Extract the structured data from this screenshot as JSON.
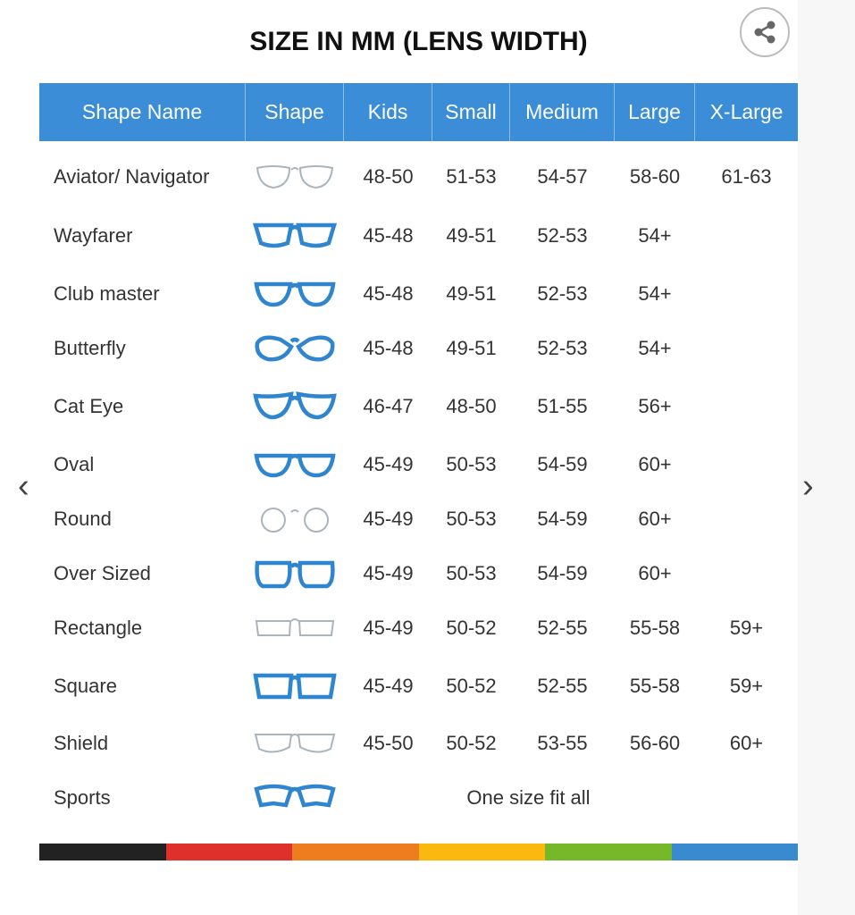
{
  "title": "SIZE IN MM (LENS WIDTH)",
  "share_icon": "share-icon",
  "columns": [
    "Shape Name",
    "Shape",
    "Kids",
    "Small",
    "Medium",
    "Large",
    "X-Large"
  ],
  "rows": [
    {
      "name": "Aviator/ Navigator",
      "style": "aviator",
      "sizes": [
        "48-50",
        "51-53",
        "54-57",
        "58-60",
        "61-63"
      ]
    },
    {
      "name": "Wayfarer",
      "style": "wayfarer",
      "sizes": [
        "45-48",
        "49-51",
        "52-53",
        "54+",
        ""
      ]
    },
    {
      "name": "Club master",
      "style": "clubmaster",
      "sizes": [
        "45-48",
        "49-51",
        "52-53",
        "54+",
        ""
      ]
    },
    {
      "name": "Butterfly",
      "style": "butterfly",
      "sizes": [
        "45-48",
        "49-51",
        "52-53",
        "54+",
        ""
      ]
    },
    {
      "name": "Cat Eye",
      "style": "cateye",
      "sizes": [
        "46-47",
        "48-50",
        "51-55",
        "56+",
        ""
      ]
    },
    {
      "name": "Oval",
      "style": "oval",
      "sizes": [
        "45-49",
        "50-53",
        "54-59",
        "60+",
        ""
      ]
    },
    {
      "name": "Round",
      "style": "round",
      "sizes": [
        "45-49",
        "50-53",
        "54-59",
        "60+",
        ""
      ]
    },
    {
      "name": "Over Sized",
      "style": "oversized",
      "sizes": [
        "45-49",
        "50-53",
        "54-59",
        "60+",
        ""
      ]
    },
    {
      "name": "Rectangle",
      "style": "rectangle",
      "sizes": [
        "45-49",
        "50-52",
        "52-55",
        "55-58",
        "59+"
      ]
    },
    {
      "name": "Square",
      "style": "square",
      "sizes": [
        "45-49",
        "50-52",
        "52-55",
        "55-58",
        "59+"
      ]
    },
    {
      "name": "Shield",
      "style": "shield",
      "sizes": [
        "45-50",
        "50-52",
        "53-55",
        "56-60",
        "60+"
      ]
    },
    {
      "name": "Sports",
      "style": "sports",
      "span_text": "One size fit all"
    }
  ],
  "colors": {
    "header": "#3a8dd6",
    "bar": [
      "#222222",
      "#e0302b",
      "#ee7d1f",
      "#fbb80f",
      "#76b82a",
      "#3a8ad0"
    ]
  }
}
